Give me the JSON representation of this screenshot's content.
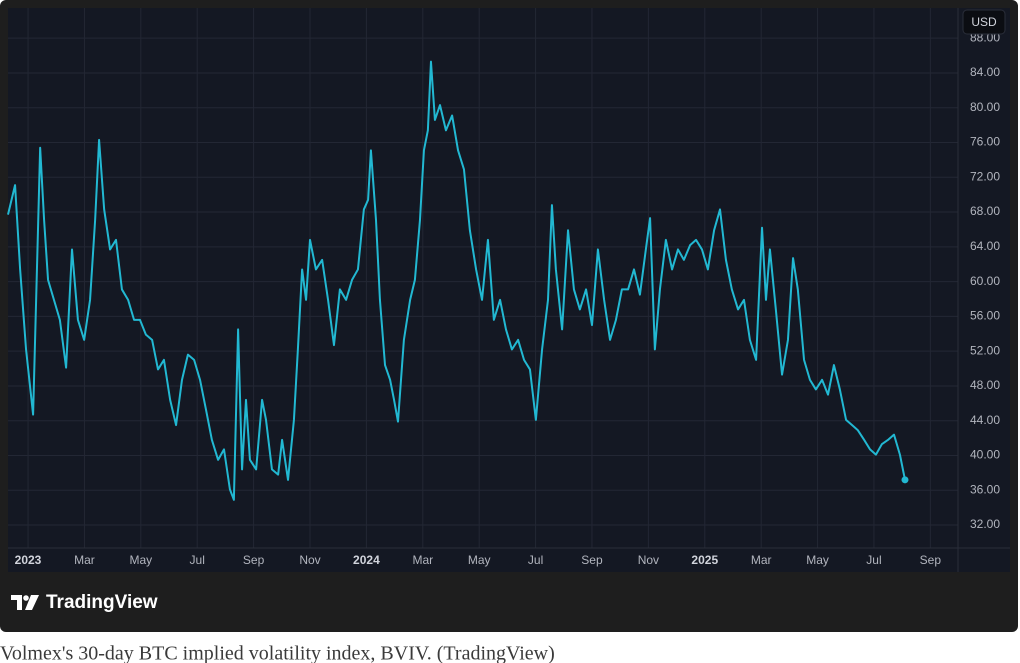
{
  "chart_data": {
    "type": "line",
    "currency_label": "USD",
    "x": [
      -0.71,
      -0.46,
      -0.28,
      -0.07,
      0.18,
      0.43,
      0.57,
      0.71,
      0.92,
      1.13,
      1.35,
      1.56,
      1.77,
      1.99,
      2.2,
      2.38,
      2.52,
      2.7,
      2.91,
      3.12,
      3.33,
      3.55,
      3.76,
      3.97,
      4.18,
      4.4,
      4.61,
      4.82,
      5.04,
      5.25,
      5.46,
      5.67,
      5.89,
      6.1,
      6.31,
      6.52,
      6.74,
      6.95,
      7.16,
      7.3,
      7.45,
      7.59,
      7.73,
      7.87,
      8.09,
      8.3,
      8.44,
      8.65,
      8.87,
      9.01,
      9.22,
      9.43,
      9.57,
      9.72,
      9.86,
      10.0,
      10.21,
      10.43,
      10.64,
      10.85,
      11.06,
      11.28,
      11.49,
      11.7,
      11.91,
      12.06,
      12.16,
      12.34,
      12.48,
      12.66,
      12.84,
      12.98,
      13.12,
      13.33,
      13.55,
      13.72,
      13.9,
      14.04,
      14.18,
      14.29,
      14.43,
      14.61,
      14.82,
      15.04,
      15.25,
      15.46,
      15.67,
      15.89,
      16.1,
      16.31,
      16.52,
      16.74,
      16.95,
      17.16,
      17.38,
      17.59,
      17.8,
      18.01,
      18.23,
      18.44,
      18.58,
      18.72,
      18.94,
      19.15,
      19.36,
      19.57,
      19.79,
      20.0,
      20.21,
      20.43,
      20.64,
      20.85,
      21.06,
      21.28,
      21.49,
      21.7,
      21.91,
      22.06,
      22.23,
      22.41,
      22.62,
      22.84,
      23.05,
      23.26,
      23.48,
      23.69,
      23.9,
      24.11,
      24.33,
      24.54,
      24.75,
      24.96,
      25.18,
      25.39,
      25.6,
      25.82,
      26.03,
      26.17,
      26.31,
      26.52,
      26.74,
      26.95,
      27.13,
      27.3,
      27.52,
      27.73,
      27.94,
      28.16,
      28.37,
      28.58,
      28.79,
      29.01,
      29.22,
      29.43,
      29.65,
      29.86,
      30.07,
      30.28,
      30.5,
      30.71,
      30.92,
      31.1
    ],
    "series": [
      {
        "color": "#22b8d2",
        "values": [
          67.7,
          71.1,
          61.4,
          52.2,
          44.7,
          75.4,
          67.1,
          60.2,
          57.9,
          55.6,
          50.1,
          63.7,
          55.6,
          53.3,
          57.9,
          67.1,
          76.3,
          68.3,
          63.7,
          64.8,
          59.1,
          57.9,
          55.6,
          55.6,
          53.9,
          53.3,
          49.9,
          51.0,
          46.4,
          43.5,
          48.7,
          51.6,
          51.0,
          48.7,
          45.3,
          41.8,
          39.5,
          40.7,
          36.1,
          34.9,
          54.5,
          38.4,
          46.4,
          39.5,
          38.4,
          46.4,
          44.1,
          38.4,
          37.8,
          41.8,
          37.2,
          44.1,
          52.2,
          61.4,
          57.9,
          64.8,
          61.4,
          62.5,
          57.9,
          52.7,
          59.1,
          57.9,
          60.2,
          61.4,
          68.3,
          69.4,
          75.1,
          67.1,
          57.9,
          50.4,
          48.7,
          46.4,
          43.9,
          53.3,
          57.9,
          60.2,
          67.1,
          75.1,
          77.4,
          85.3,
          78.6,
          80.3,
          77.4,
          79.1,
          75.1,
          72.9,
          65.9,
          61.4,
          57.9,
          64.8,
          55.6,
          57.9,
          54.5,
          52.2,
          53.3,
          51.0,
          49.9,
          44.1,
          52.2,
          57.9,
          68.8,
          61.4,
          54.5,
          65.9,
          59.1,
          56.8,
          59.1,
          55.0,
          63.7,
          57.9,
          53.3,
          55.6,
          59.1,
          59.1,
          61.4,
          58.5,
          63.7,
          67.3,
          52.2,
          59.1,
          64.8,
          61.4,
          63.7,
          62.5,
          64.2,
          64.8,
          63.7,
          61.4,
          65.9,
          68.3,
          62.5,
          59.1,
          56.8,
          57.9,
          53.3,
          51.0,
          66.2,
          57.9,
          63.7,
          56.8,
          49.3,
          53.3,
          62.7,
          59.1,
          51.0,
          48.7,
          47.6,
          48.7,
          47.0,
          50.4,
          47.6,
          44.1,
          43.5,
          42.9,
          41.8,
          40.7,
          40.1,
          41.3,
          41.8,
          42.4,
          40.1,
          37.2
        ]
      }
    ],
    "xlim": [
      -0.71,
      32.98
    ],
    "xticks": [
      {
        "value": 0,
        "label": "2023"
      },
      {
        "value": 2,
        "label": "Mar"
      },
      {
        "value": 4,
        "label": "May"
      },
      {
        "value": 6,
        "label": "Jul"
      },
      {
        "value": 8,
        "label": "Sep"
      },
      {
        "value": 10,
        "label": "Nov"
      },
      {
        "value": 12,
        "label": "2024"
      },
      {
        "value": 14,
        "label": "Mar"
      },
      {
        "value": 16,
        "label": "May"
      },
      {
        "value": 18,
        "label": "Jul"
      },
      {
        "value": 20,
        "label": "Sep"
      },
      {
        "value": 22,
        "label": "Nov"
      },
      {
        "value": 24,
        "label": "2025"
      },
      {
        "value": 26,
        "label": "Mar"
      },
      {
        "value": 28,
        "label": "May"
      },
      {
        "value": 30,
        "label": "Jul"
      },
      {
        "value": 32,
        "label": "Sep"
      }
    ],
    "ylim": [
      29.36,
      91.47
    ],
    "yticks": [
      {
        "value": 32,
        "label": "32.00"
      },
      {
        "value": 36,
        "label": "36.00"
      },
      {
        "value": 40,
        "label": "40.00"
      },
      {
        "value": 44,
        "label": "44.00"
      },
      {
        "value": 48,
        "label": "48.00"
      },
      {
        "value": 52,
        "label": "52.00"
      },
      {
        "value": 56,
        "label": "56.00"
      },
      {
        "value": 60,
        "label": "60.00"
      },
      {
        "value": 64,
        "label": "64.00"
      },
      {
        "value": 68,
        "label": "68.00"
      },
      {
        "value": 72,
        "label": "72.00"
      },
      {
        "value": 76,
        "label": "76.00"
      },
      {
        "value": 80,
        "label": "80.00"
      },
      {
        "value": 84,
        "label": "84.00"
      },
      {
        "value": 88,
        "label": "88.00"
      }
    ],
    "grid": true
  },
  "branding": "TradingView",
  "caption": "Volmex's 30-day BTC implied volatility index, BVIV. (TradingView)"
}
